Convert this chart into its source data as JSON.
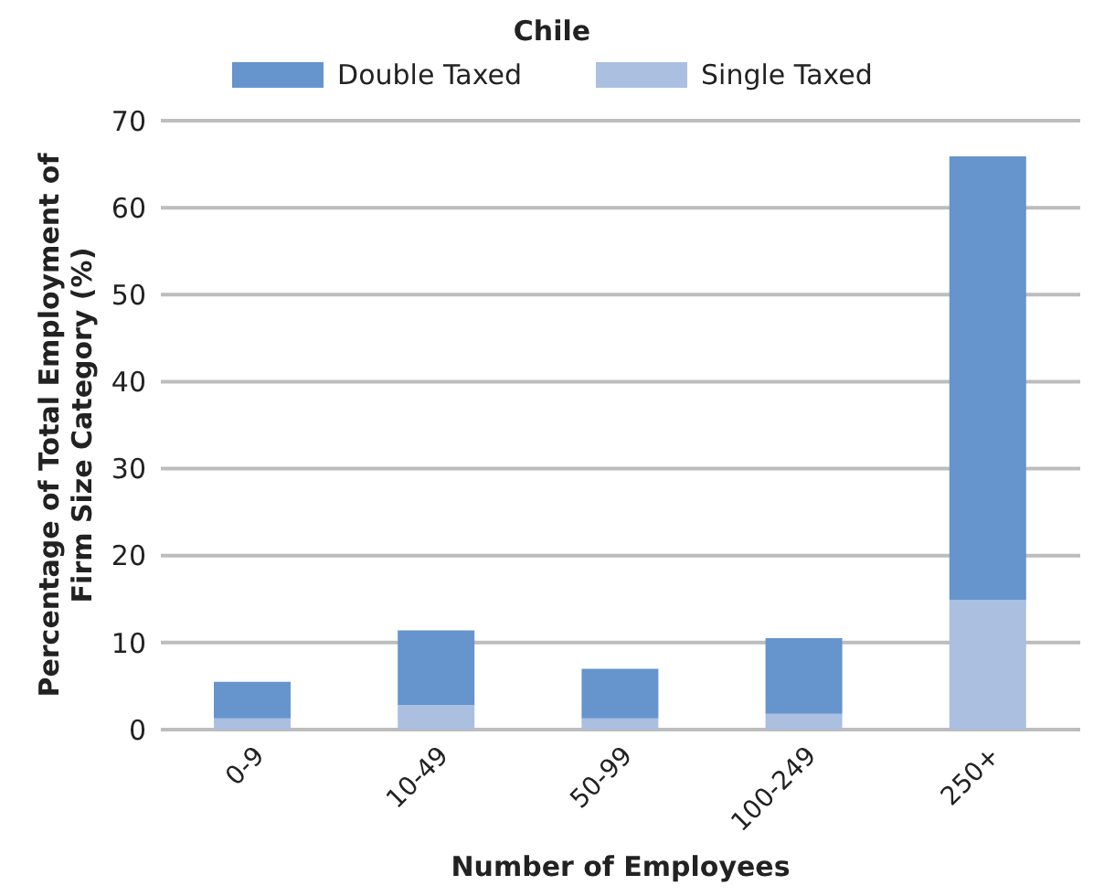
{
  "chart_data": {
    "type": "bar",
    "title": "Chile",
    "xlabel": "Number of Employees",
    "ylabel": "Percentage of Total Employment of Firm Size Category (%)",
    "categories": [
      "0-9",
      "10-49",
      "50-99",
      "100-249",
      "250+"
    ],
    "stacked": true,
    "series": [
      {
        "name": "Single Taxed",
        "color": "#abbfe1",
        "values": [
          1.3,
          2.8,
          1.3,
          1.8,
          14.9
        ]
      },
      {
        "name": "Double Taxed",
        "color": "#6694cc",
        "values": [
          4.2,
          8.6,
          5.7,
          8.7,
          51.0
        ]
      }
    ],
    "ylim": [
      0,
      70
    ],
    "yticks": [
      0,
      10,
      20,
      30,
      40,
      50,
      60,
      70
    ],
    "grid": "y",
    "legend": "top"
  }
}
